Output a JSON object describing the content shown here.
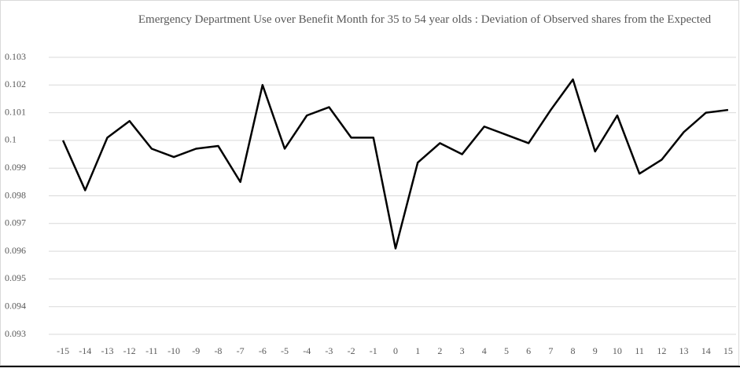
{
  "chart_data": {
    "type": "line",
    "title": "Emergency Department Use over Benefit Month for 35 to 54 year olds : Deviation of Observed shares from the Expected",
    "categories": [
      "-15",
      "-14",
      "-13",
      "-12",
      "-11",
      "-10",
      "-9",
      "-8",
      "-7",
      "-6",
      "-5",
      "-4",
      "-3",
      "-2",
      "-1",
      "0",
      "1",
      "2",
      "3",
      "4",
      "5",
      "6",
      "7",
      "8",
      "9",
      "10",
      "11",
      "12",
      "13",
      "14",
      "15"
    ],
    "series": [
      {
        "color": "#000000",
        "values": [
          0.1,
          0.0982,
          0.1001,
          0.1007,
          0.0997,
          0.0994,
          0.0997,
          0.0998,
          0.0985,
          0.102,
          0.0997,
          0.1009,
          0.1012,
          0.1001,
          0.1001,
          0.0961,
          0.0992,
          0.0999,
          0.0995,
          0.1005,
          0.1002,
          0.0999,
          0.1011,
          0.1022,
          0.0996,
          0.1009,
          0.0988,
          0.0993,
          0.1003,
          0.101,
          0.1011
        ]
      }
    ],
    "ylim": [
      0.093,
      0.103
    ],
    "yticks": [
      0.093,
      0.094,
      0.095,
      0.096,
      0.097,
      0.098,
      0.099,
      0.1,
      0.101,
      0.102,
      0.103
    ],
    "grid": true
  }
}
